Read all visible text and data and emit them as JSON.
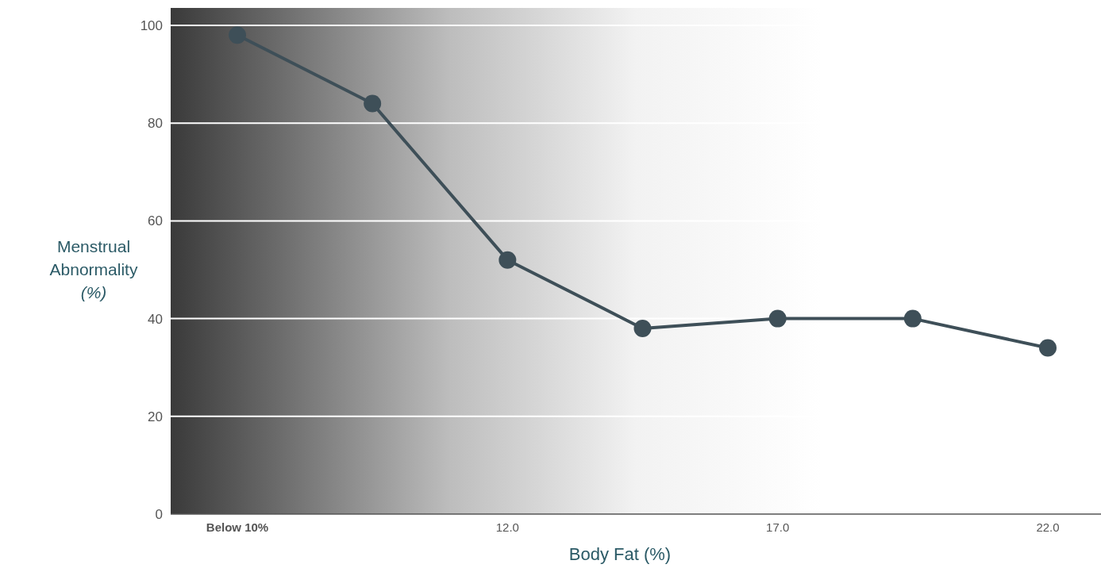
{
  "chart_data": {
    "type": "line",
    "xlabel": "Body Fat (%)",
    "ylabel": "Menstrual Abnormality (%)",
    "categories": [
      "Below 10%",
      null,
      "12.0",
      null,
      "17.0",
      null,
      "22.0"
    ],
    "series": [
      {
        "color": "#3e4f58",
        "values": [
          98,
          84,
          52,
          38,
          40,
          40,
          34
        ]
      }
    ],
    "ylim": [
      0,
      100
    ],
    "yticks": [
      0,
      20,
      40,
      60,
      80,
      100
    ],
    "grid": "y",
    "marker": "circle",
    "line_style": "solid"
  }
}
